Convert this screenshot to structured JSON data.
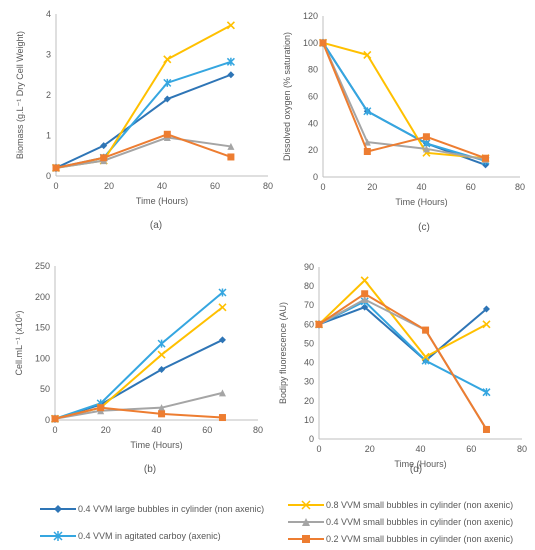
{
  "colors": {
    "large_cyl": "#2e75b6",
    "agitated": "#35a6e0",
    "yellow": "#ffc000",
    "gray": "#a5a5a5",
    "orange": "#ed7d31"
  },
  "series_meta": [
    {
      "key": "large_cyl",
      "name": "0.4 VVM large bubbles in cylinder (non axenic)",
      "marker": "diamond"
    },
    {
      "key": "agitated",
      "name": "0.4 VVM in agitated carboy (axenic)",
      "marker": "star"
    },
    {
      "key": "yellow",
      "name": "0.8 VVM small bubbles in cylinder (non axenic)",
      "marker": "x"
    },
    {
      "key": "gray",
      "name": "0.4 VVM small bubbles in cylinder (non axenic)",
      "marker": "triangle"
    },
    {
      "key": "orange",
      "name": "0.2 VVM small bubbles in cylinder (non axenic)",
      "marker": "square"
    }
  ],
  "chart_data": [
    {
      "type": "line",
      "panel": "(a)",
      "xlabel": "Time (Hours)",
      "ylabel": "Biomass (g.L⁻¹ Dry Cell Weight)",
      "xlim": [
        0,
        80
      ],
      "ylim": [
        0,
        4
      ],
      "xticks": [
        0,
        20,
        40,
        60,
        80
      ],
      "yticks": [
        0,
        1,
        2,
        3,
        4
      ],
      "x": [
        0,
        18,
        42,
        66
      ],
      "series": [
        {
          "key": "large_cyl",
          "values": [
            0.2,
            0.75,
            1.9,
            2.5
          ]
        },
        {
          "key": "agitated",
          "values": [
            0.2,
            0.45,
            2.3,
            2.82
          ]
        },
        {
          "key": "yellow",
          "values": [
            0.2,
            0.38,
            2.88,
            3.72
          ]
        },
        {
          "key": "gray",
          "values": [
            0.2,
            0.38,
            0.95,
            0.73
          ]
        },
        {
          "key": "orange",
          "values": [
            0.2,
            0.45,
            1.03,
            0.47
          ]
        }
      ]
    },
    {
      "type": "line",
      "panel": "(c)",
      "xlabel": "Time (Hours)",
      "ylabel": "Dissolved oxygen (% saturation)",
      "xlim": [
        0,
        80
      ],
      "ylim": [
        0,
        120
      ],
      "xticks": [
        0,
        20,
        40,
        60,
        80
      ],
      "yticks": [
        0,
        20,
        40,
        60,
        80,
        100,
        120
      ],
      "x": [
        0,
        18,
        42,
        66
      ],
      "series": [
        {
          "key": "large_cyl",
          "values": [
            100,
            49,
            25,
            9
          ]
        },
        {
          "key": "agitated",
          "values": [
            100,
            49,
            25,
            12
          ]
        },
        {
          "key": "yellow",
          "values": [
            100,
            91,
            18,
            14
          ]
        },
        {
          "key": "gray",
          "values": [
            100,
            26,
            21,
            13
          ]
        },
        {
          "key": "orange",
          "values": [
            100,
            19,
            30,
            14
          ]
        }
      ]
    },
    {
      "type": "line",
      "panel": "(b)",
      "xlabel": "Time (Hours)",
      "ylabel": "Cell.mL⁻¹ (x10⁶)",
      "xlim": [
        0,
        80
      ],
      "ylim": [
        0,
        250
      ],
      "xticks": [
        0,
        20,
        40,
        60,
        80
      ],
      "yticks": [
        0,
        50,
        100,
        150,
        200,
        250
      ],
      "x": [
        0,
        18,
        42,
        66
      ],
      "series": [
        {
          "key": "large_cyl",
          "values": [
            2,
            25,
            82,
            130
          ]
        },
        {
          "key": "agitated",
          "values": [
            2,
            27,
            124,
            207
          ]
        },
        {
          "key": "yellow",
          "values": [
            2,
            20,
            106,
            183
          ]
        },
        {
          "key": "gray",
          "values": [
            2,
            15,
            20,
            44
          ]
        },
        {
          "key": "orange",
          "values": [
            2,
            20,
            10,
            4
          ]
        }
      ]
    },
    {
      "type": "line",
      "panel": "(d)",
      "xlabel": "Time (Hours)",
      "ylabel": "Bodipy fluorescence (AU)",
      "xlim": [
        0,
        80
      ],
      "ylim": [
        0,
        90
      ],
      "xticks": [
        0,
        20,
        40,
        60,
        80
      ],
      "yticks": [
        0,
        10,
        20,
        30,
        40,
        50,
        60,
        70,
        80,
        90
      ],
      "x": [
        0,
        18,
        42,
        66
      ],
      "series": [
        {
          "key": "large_cyl",
          "values": [
            60,
            69,
            41,
            68
          ]
        },
        {
          "key": "agitated",
          "values": [
            60,
            72,
            41,
            24.5
          ]
        },
        {
          "key": "yellow",
          "values": [
            60,
            83,
            43,
            60
          ]
        },
        {
          "key": "gray",
          "values": [
            60,
            73,
            57,
            5
          ]
        },
        {
          "key": "orange",
          "values": [
            60,
            76,
            57,
            5
          ]
        }
      ]
    }
  ]
}
